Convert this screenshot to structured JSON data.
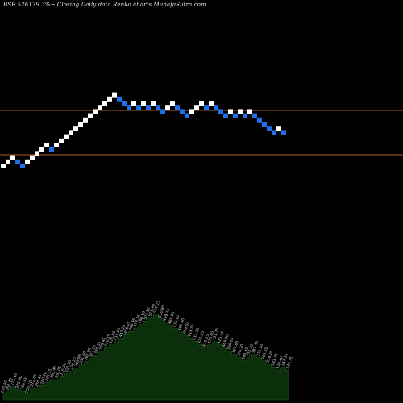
{
  "header": {
    "title": "BSE 526179 3%~  Closing Daily data  Renko  charts MunafaSutra.com"
  },
  "colors": {
    "background": "#000000",
    "brick_up": "#ffffff",
    "brick_down": "#1e6fe8",
    "hline": "#b05a2a",
    "volume_fill": "#0b2e0b",
    "volume_stroke": "#1d5a1d",
    "volume_label": "#cfcfcf"
  },
  "chart_data": {
    "type": "renko",
    "bricks": [
      {
        "row": 0,
        "dir": "up"
      },
      {
        "row": 1,
        "dir": "up"
      },
      {
        "row": 2,
        "dir": "up"
      },
      {
        "row": 1,
        "dir": "down"
      },
      {
        "row": 0,
        "dir": "down"
      },
      {
        "row": 1,
        "dir": "up"
      },
      {
        "row": 2,
        "dir": "up"
      },
      {
        "row": 3,
        "dir": "up"
      },
      {
        "row": 4,
        "dir": "up"
      },
      {
        "row": 5,
        "dir": "up"
      },
      {
        "row": 4,
        "dir": "down"
      },
      {
        "row": 5,
        "dir": "up"
      },
      {
        "row": 6,
        "dir": "up"
      },
      {
        "row": 7,
        "dir": "up"
      },
      {
        "row": 8,
        "dir": "up"
      },
      {
        "row": 9,
        "dir": "up"
      },
      {
        "row": 10,
        "dir": "up"
      },
      {
        "row": 11,
        "dir": "up"
      },
      {
        "row": 12,
        "dir": "up"
      },
      {
        "row": 13,
        "dir": "up"
      },
      {
        "row": 14,
        "dir": "up"
      },
      {
        "row": 15,
        "dir": "up"
      },
      {
        "row": 16,
        "dir": "up"
      },
      {
        "row": 17,
        "dir": "up"
      },
      {
        "row": 16,
        "dir": "down"
      },
      {
        "row": 15,
        "dir": "down"
      },
      {
        "row": 14,
        "dir": "down"
      },
      {
        "row": 15,
        "dir": "up"
      },
      {
        "row": 14,
        "dir": "down"
      },
      {
        "row": 15,
        "dir": "up"
      },
      {
        "row": 14,
        "dir": "down"
      },
      {
        "row": 15,
        "dir": "up"
      },
      {
        "row": 14,
        "dir": "down"
      },
      {
        "row": 13,
        "dir": "down"
      },
      {
        "row": 14,
        "dir": "up"
      },
      {
        "row": 15,
        "dir": "up"
      },
      {
        "row": 14,
        "dir": "down"
      },
      {
        "row": 13,
        "dir": "down"
      },
      {
        "row": 12,
        "dir": "down"
      },
      {
        "row": 13,
        "dir": "up"
      },
      {
        "row": 14,
        "dir": "up"
      },
      {
        "row": 15,
        "dir": "up"
      },
      {
        "row": 14,
        "dir": "down"
      },
      {
        "row": 15,
        "dir": "up"
      },
      {
        "row": 14,
        "dir": "down"
      },
      {
        "row": 13,
        "dir": "down"
      },
      {
        "row": 12,
        "dir": "down"
      },
      {
        "row": 13,
        "dir": "up"
      },
      {
        "row": 12,
        "dir": "down"
      },
      {
        "row": 13,
        "dir": "up"
      },
      {
        "row": 12,
        "dir": "down"
      },
      {
        "row": 13,
        "dir": "up"
      },
      {
        "row": 12,
        "dir": "down"
      },
      {
        "row": 11,
        "dir": "down"
      },
      {
        "row": 10,
        "dir": "down"
      },
      {
        "row": 9,
        "dir": "down"
      },
      {
        "row": 8,
        "dir": "down"
      },
      {
        "row": 9,
        "dir": "up"
      },
      {
        "row": 8,
        "dir": "down"
      }
    ],
    "reference_lines": 2,
    "volume_labels": [
      "250.00",
      "258.40",
      "275.60",
      "265.90",
      "260.95",
      "250.10",
      "272.00",
      "270.45",
      "280.20",
      "290.55",
      "300.45",
      "300.05",
      "310.30",
      "320.30",
      "330.20",
      "340.90",
      "351.00",
      "362.90",
      "373.15",
      "385.35",
      "399.45",
      "410.25",
      "420.80",
      "431.60",
      "443.20",
      "455.05",
      "466.40",
      "478.35",
      "490.60",
      "502.90",
      "515.40",
      "527.15",
      "510.80",
      "499.25",
      "488.05",
      "476.60",
      "465.30",
      "454.50",
      "443.70",
      "432.30",
      "421.25",
      "410.15",
      "420.60",
      "431.75",
      "420.40",
      "409.50",
      "398.85",
      "387.65",
      "376.20",
      "365.45",
      "376.30",
      "387.40",
      "376.10",
      "365.05",
      "354.20",
      "343.75",
      "333.40",
      "343.10",
      "332.75"
    ]
  }
}
